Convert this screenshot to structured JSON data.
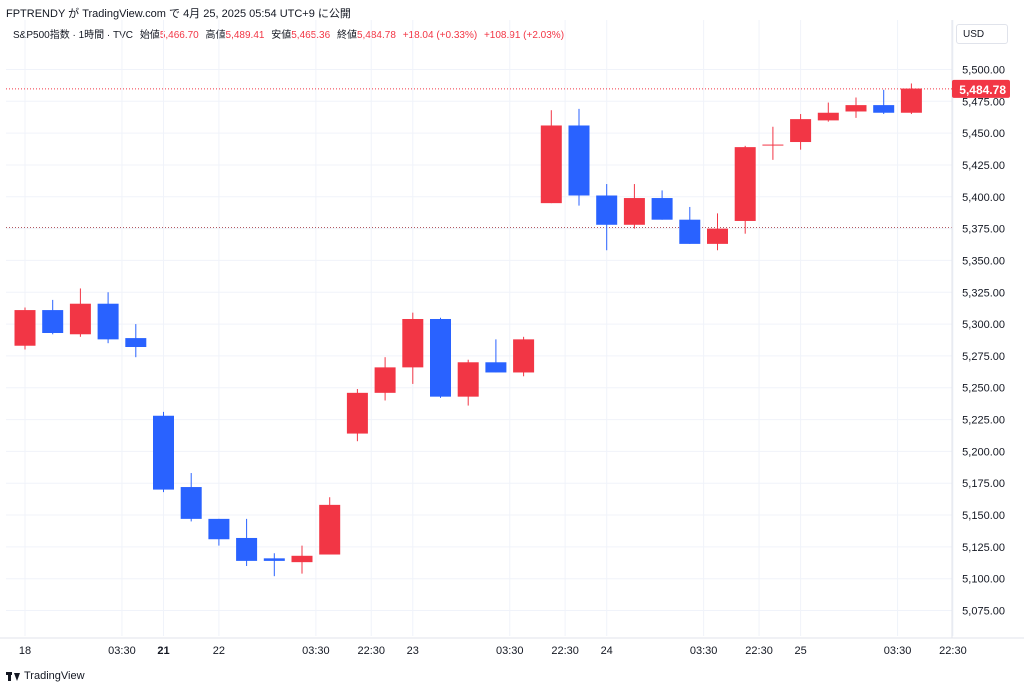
{
  "caption": "FPTRENDY が TradingView.com で 4月 25, 2025 05:54 UTC+9 に公開",
  "legend": {
    "symbol": "S&P500指数 · 1時間 · TVC",
    "open_label": "始値",
    "open_value": "5,466.70",
    "high_label": "高値",
    "high_value": "5,489.41",
    "low_label": "安値",
    "low_value": "5,465.36",
    "close_label": "終値",
    "close_value": "5,484.78",
    "change": "+18.04 (+0.33%)",
    "change2": "+108.91 (+2.03%)"
  },
  "currency_button": "USD",
  "footer": {
    "brand": "TradingView"
  },
  "colors": {
    "up": "#f23645",
    "down": "#2962ff",
    "grid": "#f0f3fa",
    "axis_text": "#131722"
  },
  "chart_data": {
    "type": "candlestick",
    "y_range": [
      5055,
      5520
    ],
    "y_ticks": [
      "5,075.00",
      "5,100.00",
      "5,125.00",
      "5,150.00",
      "5,175.00",
      "5,200.00",
      "5,225.00",
      "5,250.00",
      "5,275.00",
      "5,300.00",
      "5,325.00",
      "5,350.00",
      "5,375.00",
      "5,400.00",
      "5,425.00",
      "5,450.00",
      "5,475.00",
      "5,500.00"
    ],
    "x_ticks": [
      {
        "label": "18",
        "index": 0,
        "bold": false
      },
      {
        "label": "03:30",
        "index": 3.5,
        "bold": false
      },
      {
        "label": "21",
        "index": 5,
        "bold": true
      },
      {
        "label": "22",
        "index": 7,
        "bold": false
      },
      {
        "label": "03:30",
        "index": 10.5,
        "bold": false
      },
      {
        "label": "22:30",
        "index": 12.5,
        "bold": false
      },
      {
        "label": "23",
        "index": 14,
        "bold": false
      },
      {
        "label": "03:30",
        "index": 17.5,
        "bold": false
      },
      {
        "label": "22:30",
        "index": 19.5,
        "bold": false
      },
      {
        "label": "24",
        "index": 21,
        "bold": false
      },
      {
        "label": "03:30",
        "index": 24.5,
        "bold": false
      },
      {
        "label": "22:30",
        "index": 26.5,
        "bold": false
      },
      {
        "label": "25",
        "index": 28,
        "bold": false
      },
      {
        "label": "03:30",
        "index": 31.5,
        "bold": false
      },
      {
        "label": "22:30",
        "index": 33.5,
        "bold": false
      }
    ],
    "candles": [
      {
        "o": 5283,
        "h": 5313,
        "l": 5280,
        "c": 5311
      },
      {
        "o": 5311,
        "h": 5319,
        "l": 5292,
        "c": 5293
      },
      {
        "o": 5292,
        "h": 5328,
        "l": 5290,
        "c": 5316
      },
      {
        "o": 5316,
        "h": 5325,
        "l": 5285,
        "c": 5288
      },
      {
        "o": 5289,
        "h": 5300,
        "l": 5274,
        "c": 5282
      },
      {
        "o": 5228,
        "h": 5231,
        "l": 5168,
        "c": 5170
      },
      {
        "o": 5172,
        "h": 5183,
        "l": 5145,
        "c": 5147
      },
      {
        "o": 5147,
        "h": 5147,
        "l": 5126,
        "c": 5131
      },
      {
        "o": 5132,
        "h": 5147,
        "l": 5110,
        "c": 5114
      },
      {
        "o": 5116,
        "h": 5120,
        "l": 5102,
        "c": 5114
      },
      {
        "o": 5113,
        "h": 5126,
        "l": 5104,
        "c": 5118
      },
      {
        "o": 5119,
        "h": 5164,
        "l": 5119,
        "c": 5158
      },
      {
        "o": 5214,
        "h": 5249,
        "l": 5208,
        "c": 5246
      },
      {
        "o": 5246,
        "h": 5274,
        "l": 5240,
        "c": 5266
      },
      {
        "o": 5266,
        "h": 5309,
        "l": 5253,
        "c": 5304
      },
      {
        "o": 5304,
        "h": 5305,
        "l": 5242,
        "c": 5243
      },
      {
        "o": 5243,
        "h": 5272,
        "l": 5236,
        "c": 5270
      },
      {
        "o": 5270,
        "h": 5288,
        "l": 5262,
        "c": 5262
      },
      {
        "o": 5262,
        "h": 5290,
        "l": 5259,
        "c": 5288
      },
      {
        "o": 5395,
        "h": 5468,
        "l": 5395,
        "c": 5456
      },
      {
        "o": 5456,
        "h": 5469,
        "l": 5393,
        "c": 5401
      },
      {
        "o": 5401,
        "h": 5410,
        "l": 5358,
        "c": 5378
      },
      {
        "o": 5378,
        "h": 5410,
        "l": 5375,
        "c": 5399
      },
      {
        "o": 5399,
        "h": 5405,
        "l": 5382,
        "c": 5382
      },
      {
        "o": 5382,
        "h": 5392,
        "l": 5363,
        "c": 5363
      },
      {
        "o": 5363,
        "h": 5387,
        "l": 5358,
        "c": 5375
      },
      {
        "o": 5381,
        "h": 5440,
        "l": 5371,
        "c": 5439
      },
      {
        "o": 5441,
        "h": 5455,
        "l": 5429,
        "c": 5441
      },
      {
        "o": 5443,
        "h": 5465,
        "l": 5437,
        "c": 5461
      },
      {
        "o": 5460,
        "h": 5474,
        "l": 5459,
        "c": 5466
      },
      {
        "o": 5467,
        "h": 5478,
        "l": 5462,
        "c": 5472
      },
      {
        "o": 5472,
        "h": 5484,
        "l": 5465,
        "c": 5466
      },
      {
        "o": 5466,
        "h": 5489,
        "l": 5465,
        "c": 5485
      }
    ],
    "last_price": "5,484.78",
    "last_price_value": 5484.78,
    "reference_line_value": 5375.87
  }
}
